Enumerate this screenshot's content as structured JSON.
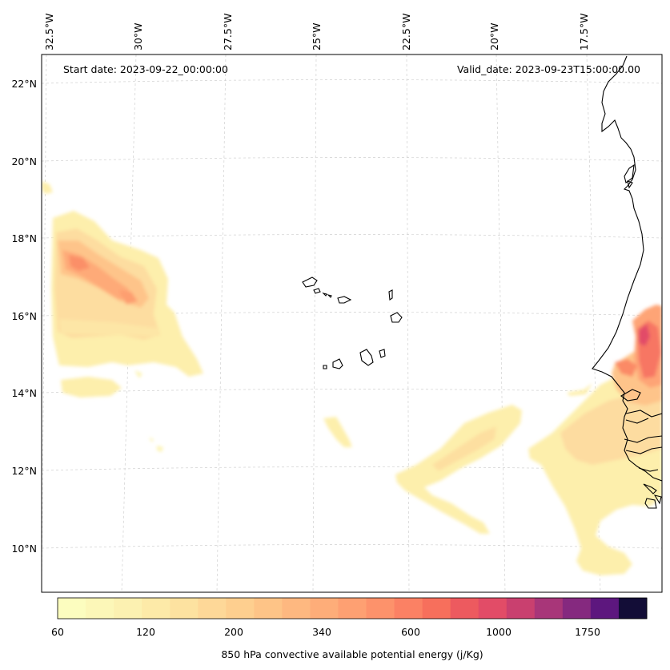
{
  "map": {
    "start_label": "Start date: 2023-09-22_00:00:00",
    "valid_label": "Valid_date: 2023-09-23T15:00:00.00",
    "lon_labels": [
      "32.5°W",
      "30°W",
      "27.5°W",
      "25°W",
      "22.5°W",
      "20°W",
      "17.5°W"
    ],
    "lat_labels": [
      "22°N",
      "20°N",
      "18°N",
      "16°N",
      "14°N",
      "12°N",
      "10°N"
    ],
    "coastline_color": "#000000",
    "gridline_color": "#d0d0d0"
  },
  "colorbar": {
    "title": "850 hPa convective available potential energy (j/Kg)",
    "tick_labels": [
      "60",
      "120",
      "200",
      "340",
      "600",
      "1000",
      "1750"
    ],
    "colors": [
      "#fcfdbf",
      "#fcf7b8",
      "#fcf1b1",
      "#fdeaa8",
      "#fde2a0",
      "#fed898",
      "#fecf8f",
      "#fec487",
      "#feb880",
      "#fead79",
      "#fea072",
      "#fd926b",
      "#fb8164",
      "#f76f5c",
      "#ed5a5f",
      "#e24c67",
      "#c9406f",
      "#a83679",
      "#85297f",
      "#5d177e",
      "#130d37"
    ]
  }
}
